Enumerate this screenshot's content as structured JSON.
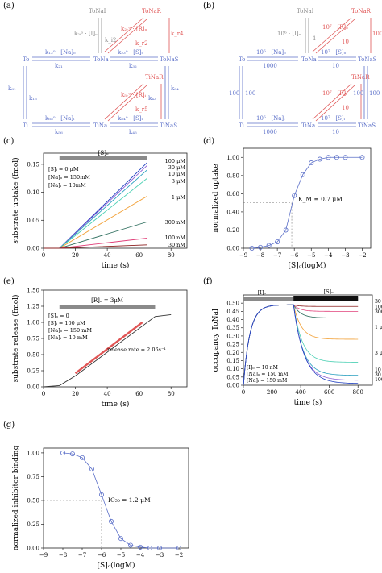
{
  "colors": {
    "blue": "#5b6fc8",
    "red": "#e05555",
    "gray": "#8a8a8a",
    "axis": "#222222"
  },
  "panel_a": {
    "label": "(a)",
    "nodes": {
      "tonai": "ToNaI",
      "to": "To",
      "tona": "ToNa",
      "tonas": "ToNaS",
      "tonar": "ToNaR",
      "ti": "Ti",
      "tina": "TiNa",
      "tinas": "TiNaS",
      "tinar": "TiNaR"
    },
    "edges": {
      "to_tona_fwd": "k₁₂ᵒ · [Na]ₒ",
      "to_tona_rev": "k₂₁",
      "tona_tonas_fwd": "k₂₃ᵒ · [S]ₒ",
      "tona_tonas_rev": "k₃₂",
      "ti_tina_fwd": "k₆₅ᵒ · [Na]ᵢ",
      "ti_tina_rev": "k₅₆",
      "tina_tinas_fwd": "k₅₄ᵒ · [S]ᵢ",
      "tina_tinas_rev": "k₄₅",
      "to_ti_up": "k₆₁",
      "to_ti_down": "k₁₆",
      "tonas_tinas_up": "k₃₄",
      "tonas_tinas_down": "k₄₃",
      "tona_tonai_up": "k₂ᵢᵒ · [I]ₒ",
      "tona_tonai_down": "k_i2",
      "tona_tonar_fwd": "k₂ᵣᵒ · [R]ₒ",
      "tona_tonar_rev": "k_r2",
      "tinar_tinas": "k_r4",
      "tina_tinar_fwd": "k₅ᵣᵒ · [R]ᵢ",
      "tina_tinar_rev": "k_r5"
    }
  },
  "panel_b": {
    "label": "(b)",
    "nodes": {
      "tonai": "ToNaI",
      "to": "To",
      "tona": "ToNa",
      "tonas": "ToNaS",
      "tonar": "ToNaR",
      "ti": "Ti",
      "tina": "TiNa",
      "tinas": "TiNaS",
      "tinar": "TiNaR"
    },
    "edges": {
      "to_tona_fwd": "10⁶ · [Na]ₒ",
      "to_tona_rev": "1000",
      "tona_tonas_fwd": "10⁷ · [S]ₒ",
      "tona_tonas_rev": "10",
      "ti_tina_fwd": "10⁶ · [Na]ᵢ",
      "ti_tina_rev": "1000",
      "tina_tinas_fwd": "10⁷ · [S]ᵢ",
      "tina_tinas_rev": "10",
      "to_ti_a": "100",
      "to_ti_b": "100",
      "tonas_tinas_a": "100",
      "tonas_tinas_b": "100",
      "tona_tonai_up": "10⁶ · [I]ₒ",
      "tona_tonai_down": "1",
      "tona_tonar_fwd": "10⁷ · [R]ₒ",
      "tona_tonar_rev": "10",
      "tinar_tinas": "100",
      "tina_tinar_fwd": "10⁷ · [R]ᵢ",
      "tina_tinar_rev": "10"
    }
  },
  "chart_data": [
    {
      "panel": "(c)",
      "type": "line",
      "xlabel": "time (s)",
      "ylabel": "substrate uptake (fmol)",
      "xlim": [
        0,
        90
      ],
      "ylim": [
        0,
        0.17
      ],
      "xticks": [
        0,
        20,
        40,
        60,
        80
      ],
      "yticks": [
        0,
        0.05,
        0.1,
        0.15
      ],
      "bar_label": "[S]ₒ",
      "bar_range": [
        10,
        65
      ],
      "annotations": [
        "[S]ᵢ = 0 μM",
        "[Na]ₒ = 150mM",
        "[Na]ᵢ = 10mM"
      ],
      "series": [
        {
          "name": "100 μM",
          "color": "#1f3fbf",
          "x": [
            0,
            10,
            65
          ],
          "y": [
            0,
            0,
            0.153
          ]
        },
        {
          "name": "30 μM",
          "color": "#8b5fd6",
          "x": [
            0,
            10,
            65
          ],
          "y": [
            0,
            0,
            0.148
          ]
        },
        {
          "name": "10 μM",
          "color": "#2a9fbf",
          "x": [
            0,
            10,
            65
          ],
          "y": [
            0,
            0,
            0.14
          ]
        },
        {
          "name": "3 μM",
          "color": "#4fd1b5",
          "x": [
            0,
            10,
            65
          ],
          "y": [
            0,
            0,
            0.125
          ]
        },
        {
          "name": "1 μM",
          "color": "#f2a23a",
          "x": [
            0,
            10,
            65
          ],
          "y": [
            0,
            0,
            0.093
          ]
        },
        {
          "name": "300 nM",
          "color": "#2f6f5f",
          "x": [
            0,
            10,
            65
          ],
          "y": [
            0,
            0,
            0.047
          ]
        },
        {
          "name": "100 nM",
          "color": "#e0407a",
          "x": [
            0,
            10,
            65
          ],
          "y": [
            0,
            0,
            0.018
          ]
        },
        {
          "name": "30 nM",
          "color": "#8b1f1f",
          "x": [
            0,
            10,
            65
          ],
          "y": [
            0,
            0,
            0.006
          ]
        }
      ]
    },
    {
      "panel": "(d)",
      "type": "scatter",
      "xlabel": "[S]ₒ(logM)",
      "ylabel": "normalized uptake",
      "xlim": [
        -9,
        -1.5
      ],
      "ylim": [
        0,
        1.1
      ],
      "xticks": [
        -9,
        -8,
        -7,
        -6,
        -5,
        -4,
        -3,
        -2
      ],
      "yticks": [
        0,
        0.2,
        0.4,
        0.6,
        0.8,
        1.0
      ],
      "annotation": "K_M = 0.7 μM",
      "ref_x": -6.15,
      "ref_y": 0.5,
      "x": [
        -8.5,
        -8,
        -7.5,
        -7,
        -6.5,
        -6,
        -5.5,
        -5,
        -4.5,
        -4,
        -3.5,
        -3,
        -2
      ],
      "y": [
        0.0,
        0.01,
        0.03,
        0.07,
        0.2,
        0.58,
        0.81,
        0.94,
        0.98,
        1.0,
        1.0,
        1.0,
        1.0
      ]
    },
    {
      "panel": "(e)",
      "type": "line",
      "xlabel": "time (s)",
      "ylabel": "substrate release (fmol)",
      "xlim": [
        0,
        90
      ],
      "ylim": [
        0,
        1.5
      ],
      "xticks": [
        0,
        20,
        40,
        60,
        80
      ],
      "yticks": [
        0,
        0.25,
        0.5,
        0.75,
        1.0,
        1.25,
        1.5
      ],
      "bar_label": "[R]ₒ = 3μM",
      "bar_range": [
        10,
        70
      ],
      "annotations": [
        "[S]ₒ = 0",
        "[S]ᵢ = 100 μM",
        "[Na]ₒ = 150 mM",
        "[Na]ᵢ = 10 mM"
      ],
      "rate_label": "release rate = 2.06s⁻¹",
      "series": [
        {
          "name": "release",
          "color": "#333333",
          "x": [
            0,
            10,
            20,
            70,
            80
          ],
          "y": [
            0,
            0.02,
            0.17,
            1.09,
            1.12
          ]
        },
        {
          "name": "fit",
          "color": "#e05555",
          "x": [
            20,
            62
          ],
          "y": [
            0.21,
            1.0
          ]
        }
      ]
    },
    {
      "panel": "(f)",
      "type": "line",
      "xlabel": "time (s)",
      "ylabel": "occupancy ToNaI",
      "xlim": [
        0,
        900
      ],
      "ylim": [
        0,
        0.55
      ],
      "xticks": [
        0,
        200,
        400,
        600,
        800
      ],
      "yticks": [
        0,
        0.05,
        0.1,
        0.15,
        0.2,
        0.25,
        0.3,
        0.35,
        0.4,
        0.45,
        0.5
      ],
      "bar1_label": "[I]ₒ",
      "bar1_range": [
        0,
        800
      ],
      "bar2_label": "[S]ₒ",
      "bar2_range": [
        350,
        800
      ],
      "annotations": [
        "[I]ₒ = 10 nM",
        "[Na]ₒ = 150 mM",
        "[Na]ᵢ = 150 mM"
      ],
      "series": [
        {
          "name": "30 nM",
          "color": "#8b1f1f",
          "plateau": 0.48
        },
        {
          "name": "100 nM",
          "color": "#e0407a",
          "plateau": 0.45
        },
        {
          "name": "300 nM",
          "color": "#2f6f5f",
          "plateau": 0.41
        },
        {
          "name": "1 μM",
          "color": "#f2a23a",
          "plateau": 0.28
        },
        {
          "name": "3 μM",
          "color": "#4fd1b5",
          "plateau": 0.14
        },
        {
          "name": "10 μM",
          "color": "#2a9fbf",
          "plateau": 0.06
        },
        {
          "name": "30 μM",
          "color": "#8b5fd6",
          "plateau": 0.03
        },
        {
          "name": "100 μM",
          "color": "#1f3fbf",
          "plateau": 0.01
        }
      ]
    },
    {
      "panel": "(g)",
      "type": "scatter",
      "xlabel": "[S]ₒ(logM)",
      "ylabel": "normalized inhibitor binding",
      "xlim": [
        -9,
        -1.5
      ],
      "ylim": [
        0,
        1.05
      ],
      "xticks": [
        -9,
        -8,
        -7,
        -6,
        -5,
        -4,
        -3,
        -2
      ],
      "yticks": [
        0,
        0.25,
        0.5,
        0.75,
        1.0
      ],
      "annotation": "IC₅₀ = 1.2 μM",
      "ref_x": -6.0,
      "ref_y": 0.5,
      "x": [
        -8,
        -7.5,
        -7,
        -6.5,
        -6,
        -5.5,
        -5,
        -4.5,
        -4,
        -3.5,
        -3,
        -2
      ],
      "y": [
        1.0,
        0.99,
        0.95,
        0.83,
        0.56,
        0.28,
        0.1,
        0.03,
        0.01,
        0.0,
        0.0,
        0.0
      ]
    }
  ],
  "panel_labels": {
    "c": "(c)",
    "d": "(d)",
    "e": "(e)",
    "f": "(f)",
    "g": "(g)"
  }
}
